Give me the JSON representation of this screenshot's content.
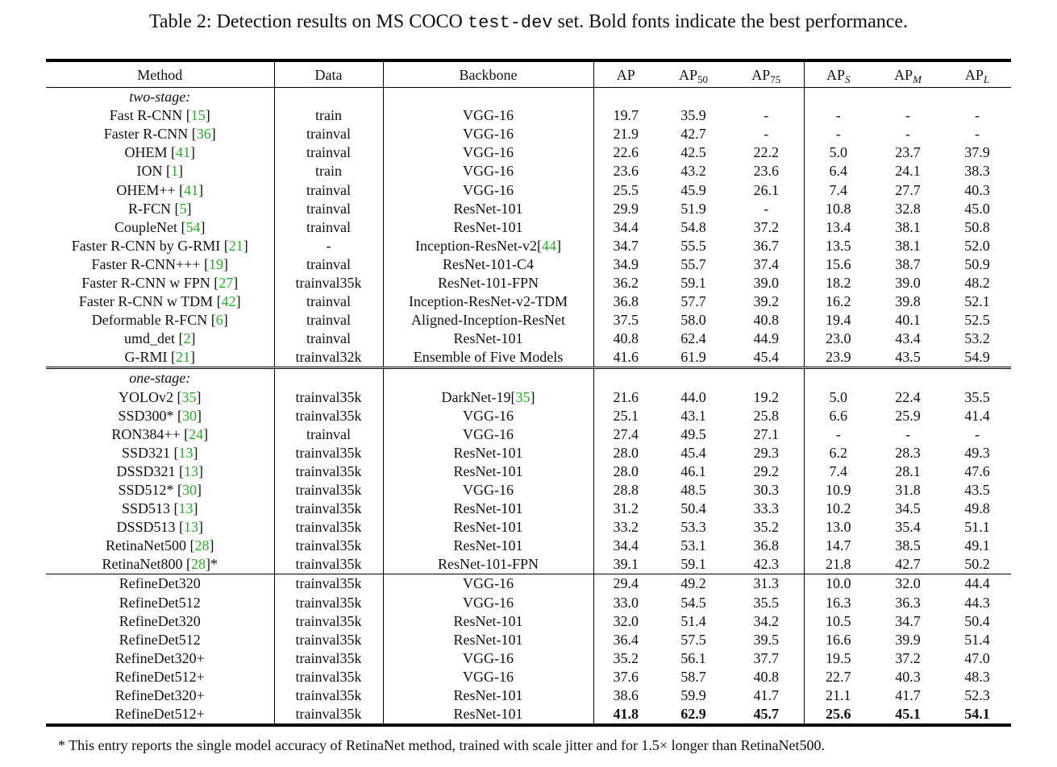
{
  "caption": {
    "prefix": "Table 2: Detection results on MS COCO ",
    "mono": "test-dev",
    "suffix": " set. Bold fonts indicate the best performance."
  },
  "headers": {
    "method": "Method",
    "data": "Data",
    "backbone": "Backbone",
    "ap": "AP",
    "ap50_base": "AP",
    "ap50_sub": "50",
    "ap75_base": "AP",
    "ap75_sub": "75",
    "aps_base": "AP",
    "aps_sub": "S",
    "apm_base": "AP",
    "apm_sub": "M",
    "apl_base": "AP",
    "apl_sub": "L"
  },
  "sections": [
    {
      "label": "two-stage:",
      "border": "none",
      "rows": [
        {
          "method": "Fast R-CNN ",
          "ref": "15",
          "post": "",
          "data": "train",
          "backbone": "VGG-16",
          "bref": "",
          "v": [
            "19.7",
            "35.9",
            "-",
            "-",
            "-",
            "-"
          ]
        },
        {
          "method": "Faster R-CNN ",
          "ref": "36",
          "post": "",
          "data": "trainval",
          "backbone": "VGG-16",
          "bref": "",
          "v": [
            "21.9",
            "42.7",
            "-",
            "-",
            "-",
            "-"
          ]
        },
        {
          "method": "OHEM ",
          "ref": "41",
          "post": "",
          "data": "trainval",
          "backbone": "VGG-16",
          "bref": "",
          "v": [
            "22.6",
            "42.5",
            "22.2",
            "5.0",
            "23.7",
            "37.9"
          ]
        },
        {
          "method": "ION ",
          "ref": "1",
          "post": "",
          "data": "train",
          "backbone": "VGG-16",
          "bref": "",
          "v": [
            "23.6",
            "43.2",
            "23.6",
            "6.4",
            "24.1",
            "38.3"
          ]
        },
        {
          "method": "OHEM++ ",
          "ref": "41",
          "post": "",
          "data": "trainval",
          "backbone": "VGG-16",
          "bref": "",
          "v": [
            "25.5",
            "45.9",
            "26.1",
            "7.4",
            "27.7",
            "40.3"
          ]
        },
        {
          "method": "R-FCN ",
          "ref": "5",
          "post": "",
          "data": "trainval",
          "backbone": "ResNet-101",
          "bref": "",
          "v": [
            "29.9",
            "51.9",
            "-",
            "10.8",
            "32.8",
            "45.0"
          ]
        },
        {
          "method": "CoupleNet ",
          "ref": "54",
          "post": "",
          "data": "trainval",
          "backbone": "ResNet-101",
          "bref": "",
          "v": [
            "34.4",
            "54.8",
            "37.2",
            "13.4",
            "38.1",
            "50.8"
          ]
        },
        {
          "method": "Faster R-CNN by G-RMI ",
          "ref": "21",
          "post": "",
          "data": "-",
          "backbone": "Inception-ResNet-v2",
          "bref": "44",
          "v": [
            "34.7",
            "55.5",
            "36.7",
            "13.5",
            "38.1",
            "52.0"
          ]
        },
        {
          "method": "Faster R-CNN+++ ",
          "ref": "19",
          "post": "",
          "data": "trainval",
          "backbone": "ResNet-101-C4",
          "bref": "",
          "v": [
            "34.9",
            "55.7",
            "37.4",
            "15.6",
            "38.7",
            "50.9"
          ]
        },
        {
          "method": "Faster R-CNN w FPN ",
          "ref": "27",
          "post": "",
          "data": "trainval35k",
          "backbone": "ResNet-101-FPN",
          "bref": "",
          "v": [
            "36.2",
            "59.1",
            "39.0",
            "18.2",
            "39.0",
            "48.2"
          ]
        },
        {
          "method": "Faster R-CNN w TDM ",
          "ref": "42",
          "post": "",
          "data": "trainval",
          "backbone": "Inception-ResNet-v2-TDM",
          "bref": "",
          "v": [
            "36.8",
            "57.7",
            "39.2",
            "16.2",
            "39.8",
            "52.1"
          ]
        },
        {
          "method": "Deformable R-FCN ",
          "ref": "6",
          "post": "",
          "data": "trainval",
          "backbone": "Aligned-Inception-ResNet",
          "bref": "",
          "v": [
            "37.5",
            "58.0",
            "40.8",
            "19.4",
            "40.1",
            "52.5"
          ]
        },
        {
          "method": "umd_det ",
          "ref": "2",
          "post": "",
          "data": "trainval",
          "backbone": "ResNet-101",
          "bref": "",
          "v": [
            "40.8",
            "62.4",
            "44.9",
            "23.0",
            "43.4",
            "53.2"
          ]
        },
        {
          "method": "G-RMI ",
          "ref": "21",
          "post": "",
          "data": "trainval32k",
          "backbone": "Ensemble of Five Models",
          "bref": "",
          "v": [
            "41.6",
            "61.9",
            "45.4",
            "23.9",
            "43.5",
            "54.9"
          ]
        }
      ]
    },
    {
      "label": "one-stage:",
      "border": "double",
      "rows": [
        {
          "method": "YOLOv2 ",
          "ref": "35",
          "post": "",
          "data": "trainval35k",
          "backbone": "DarkNet-19",
          "bref": "35",
          "v": [
            "21.6",
            "44.0",
            "19.2",
            "5.0",
            "22.4",
            "35.5"
          ]
        },
        {
          "method": "SSD300* ",
          "ref": "30",
          "post": "",
          "data": "trainval35k",
          "backbone": "VGG-16",
          "bref": "",
          "v": [
            "25.1",
            "43.1",
            "25.8",
            "6.6",
            "25.9",
            "41.4"
          ]
        },
        {
          "method": "RON384++ ",
          "ref": "24",
          "post": "",
          "data": "trainval",
          "backbone": "VGG-16",
          "bref": "",
          "v": [
            "27.4",
            "49.5",
            "27.1",
            "-",
            "-",
            "-"
          ]
        },
        {
          "method": "SSD321 ",
          "ref": "13",
          "post": "",
          "data": "trainval35k",
          "backbone": "ResNet-101",
          "bref": "",
          "v": [
            "28.0",
            "45.4",
            "29.3",
            "6.2",
            "28.3",
            "49.3"
          ]
        },
        {
          "method": "DSSD321 ",
          "ref": "13",
          "post": "",
          "data": "trainval35k",
          "backbone": "ResNet-101",
          "bref": "",
          "v": [
            "28.0",
            "46.1",
            "29.2",
            "7.4",
            "28.1",
            "47.6"
          ]
        },
        {
          "method": "SSD512* ",
          "ref": "30",
          "post": "",
          "data": "trainval35k",
          "backbone": "VGG-16",
          "bref": "",
          "v": [
            "28.8",
            "48.5",
            "30.3",
            "10.9",
            "31.8",
            "43.5"
          ]
        },
        {
          "method": "SSD513 ",
          "ref": "13",
          "post": "",
          "data": "trainval35k",
          "backbone": "ResNet-101",
          "bref": "",
          "v": [
            "31.2",
            "50.4",
            "33.3",
            "10.2",
            "34.5",
            "49.8"
          ]
        },
        {
          "method": "DSSD513 ",
          "ref": "13",
          "post": "",
          "data": "trainval35k",
          "backbone": "ResNet-101",
          "bref": "",
          "v": [
            "33.2",
            "53.3",
            "35.2",
            "13.0",
            "35.4",
            "51.1"
          ]
        },
        {
          "method": "RetinaNet500 ",
          "ref": "28",
          "post": "",
          "data": "trainval35k",
          "backbone": "ResNet-101",
          "bref": "",
          "v": [
            "34.4",
            "53.1",
            "36.8",
            "14.7",
            "38.5",
            "49.1"
          ]
        },
        {
          "method": "RetinaNet800 ",
          "ref": "28",
          "post": "*",
          "data": "trainval35k",
          "backbone": "ResNet-101-FPN",
          "bref": "",
          "v": [
            "39.1",
            "59.1",
            "42.3",
            "21.8",
            "42.7",
            "50.2"
          ]
        }
      ]
    },
    {
      "label": "",
      "border": "single",
      "rows": [
        {
          "method": "RefineDet320",
          "ref": "",
          "post": "",
          "data": "trainval35k",
          "backbone": "VGG-16",
          "bref": "",
          "v": [
            "29.4",
            "49.2",
            "31.3",
            "10.0",
            "32.0",
            "44.4"
          ]
        },
        {
          "method": "RefineDet512",
          "ref": "",
          "post": "",
          "data": "trainval35k",
          "backbone": "VGG-16",
          "bref": "",
          "v": [
            "33.0",
            "54.5",
            "35.5",
            "16.3",
            "36.3",
            "44.3"
          ]
        },
        {
          "method": "RefineDet320",
          "ref": "",
          "post": "",
          "data": "trainval35k",
          "backbone": "ResNet-101",
          "bref": "",
          "v": [
            "32.0",
            "51.4",
            "34.2",
            "10.5",
            "34.7",
            "50.4"
          ]
        },
        {
          "method": "RefineDet512",
          "ref": "",
          "post": "",
          "data": "trainval35k",
          "backbone": "ResNet-101",
          "bref": "",
          "v": [
            "36.4",
            "57.5",
            "39.5",
            "16.6",
            "39.9",
            "51.4"
          ]
        },
        {
          "method": "RefineDet320+",
          "ref": "",
          "post": "",
          "data": "trainval35k",
          "backbone": "VGG-16",
          "bref": "",
          "v": [
            "35.2",
            "56.1",
            "37.7",
            "19.5",
            "37.2",
            "47.0"
          ]
        },
        {
          "method": "RefineDet512+",
          "ref": "",
          "post": "",
          "data": "trainval35k",
          "backbone": "VGG-16",
          "bref": "",
          "v": [
            "37.6",
            "58.7",
            "40.8",
            "22.7",
            "40.3",
            "48.3"
          ]
        },
        {
          "method": "RefineDet320+",
          "ref": "",
          "post": "",
          "data": "trainval35k",
          "backbone": "ResNet-101",
          "bref": "",
          "v": [
            "38.6",
            "59.9",
            "41.7",
            "21.1",
            "41.7",
            "52.3"
          ]
        },
        {
          "method": "RefineDet512+",
          "ref": "",
          "post": "",
          "data": "trainval35k",
          "backbone": "ResNet-101",
          "bref": "",
          "v": [
            "41.8",
            "62.9",
            "45.7",
            "25.6",
            "45.1",
            "54.1"
          ],
          "bold": [
            true,
            true,
            true,
            true,
            true,
            true
          ]
        }
      ]
    }
  ],
  "footnote": "* This entry reports the single model accuracy of RetinaNet method, trained with scale jitter and for 1.5× longer than RetinaNet500."
}
